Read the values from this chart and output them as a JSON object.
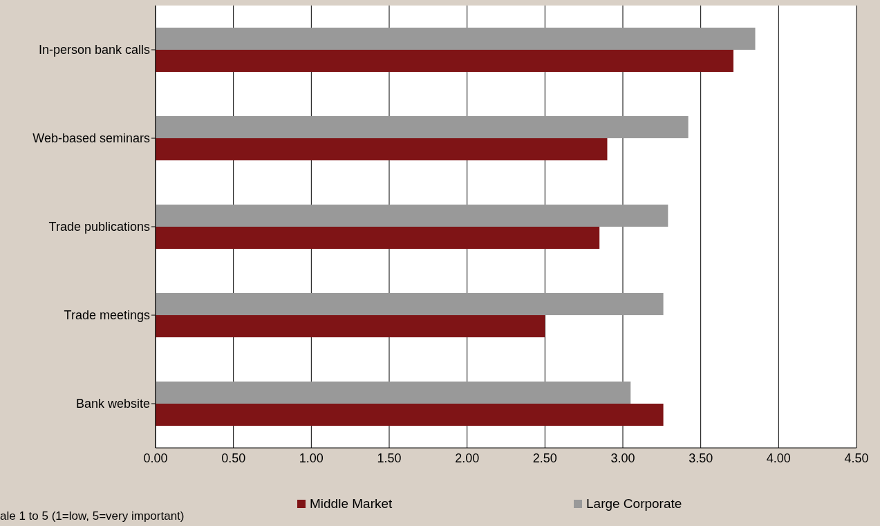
{
  "chart_data": {
    "type": "bar",
    "orientation": "horizontal",
    "categories": [
      "In-person bank calls",
      "Web-based seminars",
      "Trade publications",
      "Trade meetings",
      "Bank website"
    ],
    "series": [
      {
        "name": "Middle Market",
        "color": "#7f1416",
        "values": [
          3.71,
          2.9,
          2.85,
          2.5,
          3.26
        ]
      },
      {
        "name": "Large Corporate",
        "color": "#999999",
        "values": [
          3.85,
          3.42,
          3.29,
          3.26,
          3.05
        ]
      }
    ],
    "xlim": [
      0,
      4.5
    ],
    "xticks": [
      {
        "value": 0,
        "label": "0.00"
      },
      {
        "value": 0.5,
        "label": "0.50"
      },
      {
        "value": 1,
        "label": "1.00"
      },
      {
        "value": 1.5,
        "label": "1.50"
      },
      {
        "value": 2,
        "label": "2.00"
      },
      {
        "value": 2.5,
        "label": "2.50"
      },
      {
        "value": 3,
        "label": "3.00"
      },
      {
        "value": 3.5,
        "label": "3.50"
      },
      {
        "value": 4,
        "label": "4.00"
      },
      {
        "value": 4.5,
        "label": "4.50"
      }
    ],
    "grid": "x",
    "legend": "bottom",
    "annotations": [
      "ale 1 to 5 (1=low, 5=very important)"
    ]
  }
}
